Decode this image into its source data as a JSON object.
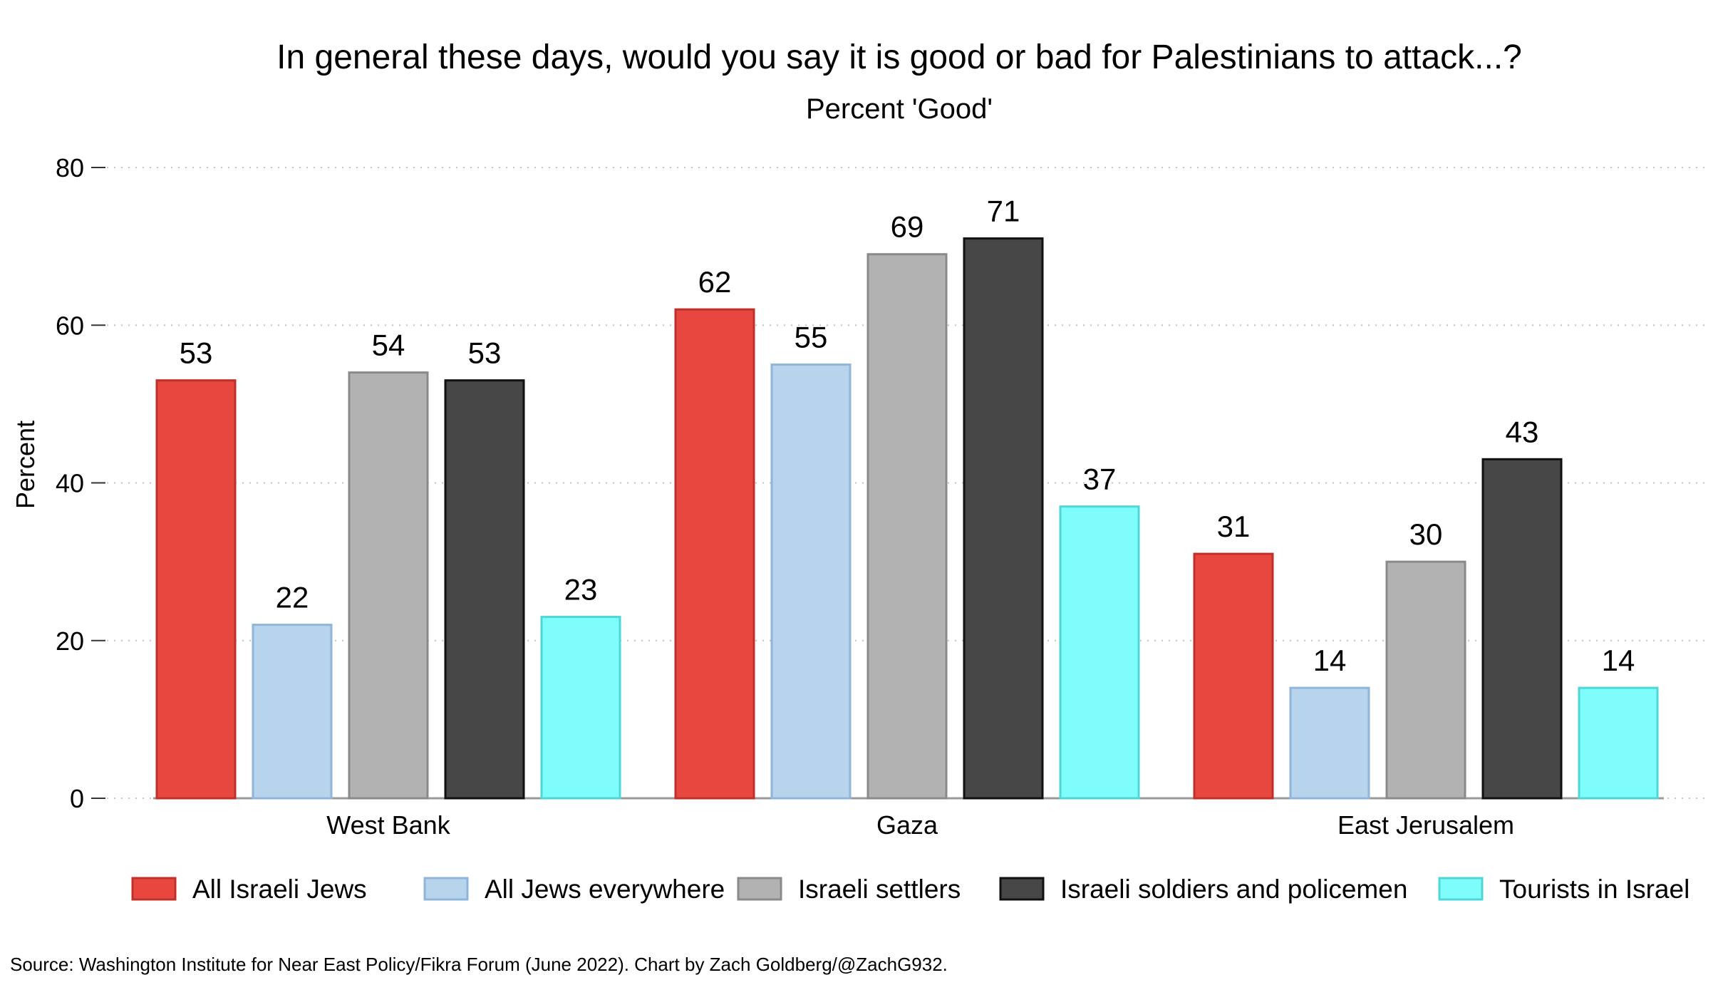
{
  "source": "Source: Washington Institute for Near East Policy/Fikra Forum (June 2022). Chart by Zach Goldberg/@ZachG932.",
  "chart_data": {
    "type": "bar",
    "title": "In general these days, would you say it is good or bad for Palestinians to attack...?",
    "subtitle": "Percent 'Good'",
    "ylabel": "Percent",
    "xlabel": "",
    "ylim": [
      0,
      80
    ],
    "yticks": [
      0,
      20,
      40,
      60,
      80
    ],
    "grid": true,
    "legend_position": "bottom",
    "categories": [
      "West Bank",
      "Gaza",
      "East Jerusalem"
    ],
    "series": [
      {
        "name": "All Israeli Jews",
        "values": [
          53,
          62,
          31
        ],
        "color": "#e8473f",
        "stroke": "#c0302a"
      },
      {
        "name": "All Jews everywhere",
        "values": [
          22,
          55,
          14
        ],
        "color": "#b7d4ec",
        "stroke": "#8fb6da"
      },
      {
        "name": "Israeli settlers",
        "values": [
          54,
          69,
          30
        ],
        "color": "#b2b2b2",
        "stroke": "#8a8a8a"
      },
      {
        "name": "Israeli soldiers and policemen",
        "values": [
          53,
          71,
          43
        ],
        "color": "#474747",
        "stroke": "#111111"
      },
      {
        "name": "Tourists in Israel",
        "values": [
          23,
          37,
          14
        ],
        "color": "#7ffcfc",
        "stroke": "#4fd6d6"
      }
    ]
  }
}
